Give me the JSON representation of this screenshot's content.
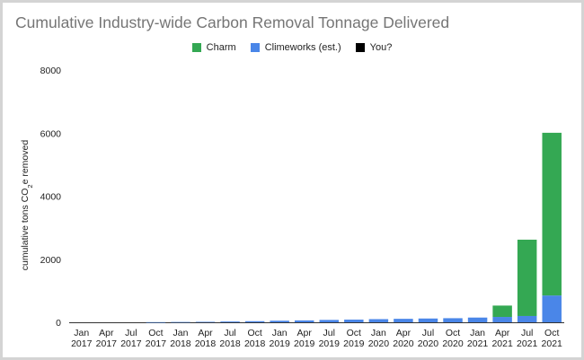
{
  "chart_data": {
    "type": "bar",
    "stacked": true,
    "title": "Cumulative Industry-wide Carbon Removal Tonnage Delivered",
    "ylabel_parts": [
      "cumulative tons CO",
      "2",
      "e removed"
    ],
    "xlabel": "",
    "ylim": [
      0,
      8000
    ],
    "yticks": [
      0,
      2000,
      4000,
      6000,
      8000
    ],
    "grid": false,
    "legend_position": "top-center",
    "categories": [
      [
        "Jan",
        "2017"
      ],
      [
        "Apr",
        "2017"
      ],
      [
        "Jul",
        "2017"
      ],
      [
        "Oct",
        "2017"
      ],
      [
        "Jan",
        "2018"
      ],
      [
        "Apr",
        "2018"
      ],
      [
        "Jul",
        "2018"
      ],
      [
        "Oct",
        "2018"
      ],
      [
        "Jan",
        "2019"
      ],
      [
        "Apr",
        "2019"
      ],
      [
        "Jul",
        "2019"
      ],
      [
        "Oct",
        "2019"
      ],
      [
        "Jan",
        "2020"
      ],
      [
        "Apr",
        "2020"
      ],
      [
        "Jul",
        "2020"
      ],
      [
        "Oct",
        "2020"
      ],
      [
        "Jan",
        "2021"
      ],
      [
        "Apr",
        "2021"
      ],
      [
        "Jul",
        "2021"
      ],
      [
        "Oct",
        "2021"
      ]
    ],
    "series": [
      {
        "name": "Climeworks (est.)",
        "color": "#4a86e8",
        "values": [
          0,
          0,
          0,
          5,
          10,
          15,
          25,
          35,
          50,
          60,
          75,
          85,
          100,
          110,
          120,
          130,
          150,
          170,
          200,
          850
        ]
      },
      {
        "name": "Charm",
        "color": "#34a853",
        "values": [
          0,
          0,
          0,
          0,
          0,
          0,
          0,
          0,
          0,
          0,
          0,
          0,
          0,
          0,
          0,
          0,
          0,
          360,
          2420,
          5160
        ]
      },
      {
        "name": "You?",
        "color": "#000000",
        "values": [
          0,
          0,
          0,
          0,
          0,
          0,
          0,
          0,
          0,
          0,
          0,
          0,
          0,
          0,
          0,
          0,
          0,
          0,
          0,
          0
        ]
      }
    ],
    "legend_order": [
      "Charm",
      "Climeworks (est.)",
      "You?"
    ]
  }
}
